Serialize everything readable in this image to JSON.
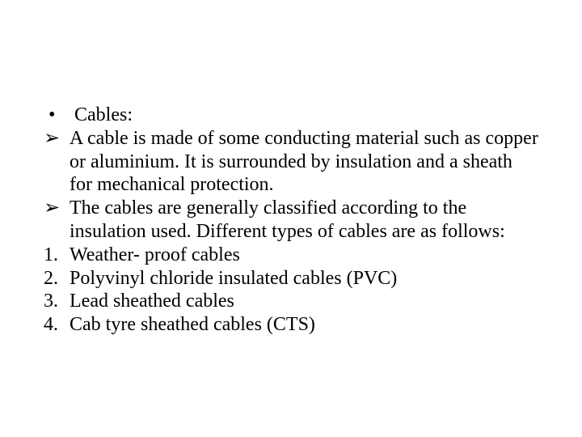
{
  "text_color": "#000000",
  "background_color": "#ffffff",
  "font_size_pt": 18,
  "bullet_glyph": "•",
  "arrow_glyph": "➢",
  "items": {
    "heading": "Cables:",
    "p1": "A cable is made of some conducting material such as copper or aluminium. It is surrounded by insulation and a sheath for mechanical protection.",
    "p2": "The cables are generally classified according to the insulation used. Different types of cables are as follows:",
    "n1_label": "1.",
    "n1_text": "Weather- proof cables",
    "n2_label": "2.",
    "n2_text": "Polyvinyl chloride insulated cables (PVC)",
    "n3_label": "3.",
    "n3_text": "Lead sheathed cables",
    "n4_label": "4.",
    "n4_text": "Cab tyre sheathed cables (CTS)"
  }
}
